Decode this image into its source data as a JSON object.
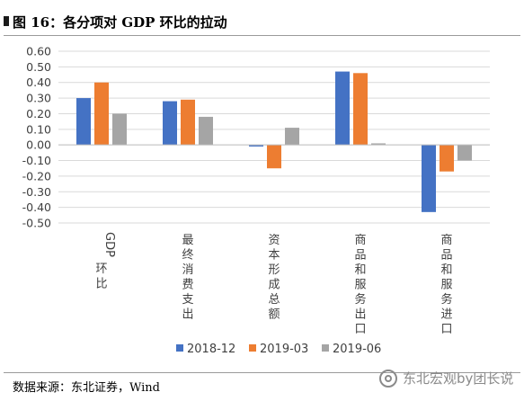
{
  "header": {
    "title": "图 16：各分项对 GDP 环比的拉动"
  },
  "footer": {
    "source": "数据来源：东北证券，Wind",
    "watermark": "东北宏观by团长说"
  },
  "colors": {
    "series_2018_12": "#4472C4",
    "series_2019_03": "#ED7D31",
    "series_2019_06": "#A5A5A5",
    "gridline": "#D9D9D9",
    "axis": "#BFBFBF"
  },
  "chart_data": {
    "type": "bar",
    "title": "",
    "xlabel": "",
    "ylabel": "",
    "categories": [
      "GDP环比",
      "最终消费支出",
      "资本形成总额",
      "商品和服务出口",
      "商品和服务进口"
    ],
    "series": [
      {
        "name": "2018-12",
        "values": [
          0.3,
          0.28,
          -0.01,
          0.47,
          -0.43
        ]
      },
      {
        "name": "2019-03",
        "values": [
          0.4,
          0.29,
          -0.15,
          0.46,
          -0.17
        ]
      },
      {
        "name": "2019-06",
        "values": [
          0.2,
          0.18,
          0.11,
          0.01,
          -0.1
        ]
      }
    ],
    "ylim": [
      -0.5,
      0.6
    ],
    "yticks": [
      "0.60",
      "0.50",
      "0.40",
      "0.30",
      "0.20",
      "0.10",
      "0.00",
      "-0.10",
      "-0.20",
      "-0.30",
      "-0.40",
      "-0.50"
    ],
    "grid": true,
    "legend_position": "bottom"
  }
}
